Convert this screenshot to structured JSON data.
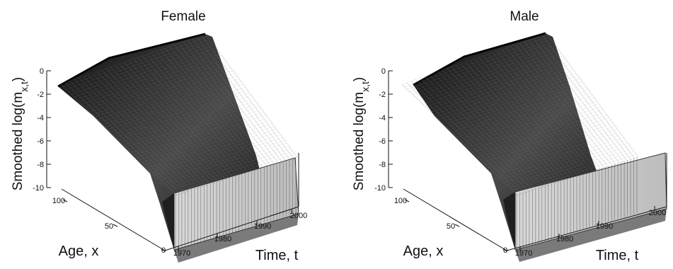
{
  "chart_data": [
    {
      "type": "surface",
      "title": "Female",
      "zlabel": "Smoothed log(m",
      "zlabel_subscript": "x,t",
      "zlabel_suffix": ")",
      "xlabel": "Time, t",
      "ylabel": "Age, x",
      "x_ticks": [
        "1970",
        "1980",
        "1990",
        "2000"
      ],
      "y_ticks": [
        "0",
        "50",
        "100"
      ],
      "z_ticks": [
        "0",
        "-2",
        "-4",
        "-6",
        "-8",
        "-10"
      ],
      "xlim": [
        1970,
        2005
      ],
      "ylim": [
        0,
        110
      ],
      "zlim": [
        -10,
        0
      ],
      "grid": false,
      "colormap": "gray",
      "description_values": {
        "log_m_at_age_0": -5.0,
        "log_m_at_age_10": -8.6,
        "log_m_at_age_20": -7.3,
        "log_m_at_age_50": -5.6,
        "log_m_at_age_80": -3.3,
        "log_m_at_age_100": -1.1
      }
    },
    {
      "type": "surface",
      "title": "Male",
      "zlabel": "Smoothed log(m",
      "zlabel_subscript": "x,t",
      "zlabel_suffix": ")",
      "xlabel": "Time, t",
      "ylabel": "Age, x",
      "x_ticks": [
        "1970",
        "1980",
        "1990",
        "2000"
      ],
      "y_ticks": [
        "0",
        "50",
        "100"
      ],
      "z_ticks": [
        "0",
        "-2",
        "-4",
        "-6",
        "-8",
        "-10"
      ],
      "xlim": [
        1970,
        2005
      ],
      "ylim": [
        0,
        110
      ],
      "zlim": [
        -10,
        0
      ],
      "grid": false,
      "colormap": "gray",
      "description_values": {
        "log_m_at_age_0": -4.8,
        "log_m_at_age_10": -8.3,
        "log_m_at_age_20": -6.7,
        "log_m_at_age_50": -5.1,
        "log_m_at_age_80": -2.9,
        "log_m_at_age_100": -1.0
      }
    }
  ]
}
